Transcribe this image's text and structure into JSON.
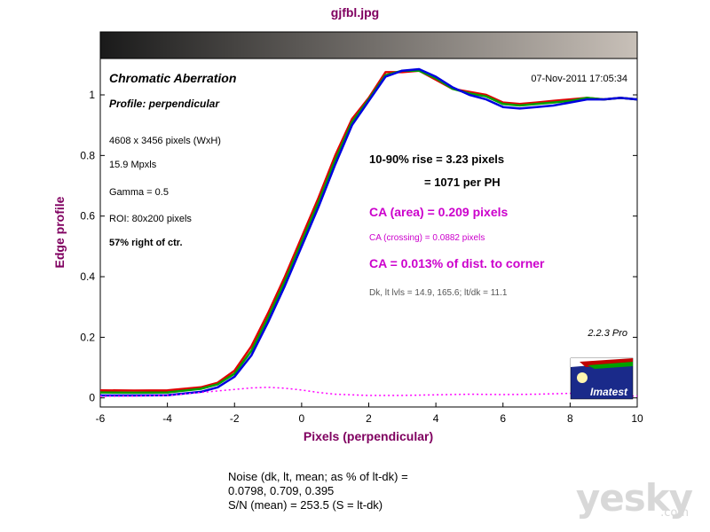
{
  "page": {
    "title": "gjfbl.jpg"
  },
  "panel": {
    "title": "Chromatic Aberration",
    "subtitle": "Profile: perpendicular",
    "timestamp": "07-Nov-2011 17:05:34",
    "image_info": [
      "4608 x 3456 pixels (WxH)",
      "15.9 Mpxls",
      "Gamma = 0.5",
      "ROI: 80x200 pixels"
    ],
    "position": "57% right of ctr.",
    "rise": "10-90% rise = 3.23 pixels",
    "per_ph": "= 1071 per PH",
    "ca_area": "CA (area) = 0.209 pixels",
    "ca_crossing": "CA (crossing) = 0.0882 pixels",
    "ca_corner": "CA = 0.013% of dist. to corner",
    "levels": "Dk, lt lvls = 14.9, 165.6;  lt/dk = 11.1",
    "version": "2.2.3  Pro",
    "logo_text": "Imatest"
  },
  "noise": {
    "line1": "Noise (dk, lt, mean; as % of lt-dk) =",
    "line2": "0.0798,  0.709,  0.395",
    "line3": "S/N (mean) = 253.5  (S = lt-dk)"
  },
  "watermark": {
    "main": "yesky",
    "sub": ".com"
  },
  "colors": {
    "title": "#800060",
    "magenta": "#cc00cc",
    "red": "#e00000",
    "green": "#00a000",
    "blue": "#0000e0",
    "text": "#000000"
  },
  "chart_data": {
    "type": "line",
    "xlabel": "Pixels (perpendicular)",
    "ylabel": "Edge profile",
    "xlim": [
      -6,
      10
    ],
    "ylim": [
      -0.03,
      1.12
    ],
    "xticks": [
      -6,
      -4,
      -2,
      0,
      2,
      4,
      6,
      8,
      10
    ],
    "yticks": [
      0,
      0.2,
      0.4,
      0.6,
      0.8,
      1
    ],
    "ytick_labels": [
      "0",
      "0.2",
      "0.4",
      "0.6",
      "0.8",
      "1"
    ],
    "grid": false,
    "series": [
      {
        "color": "#e00000",
        "x": [
          -6,
          -5,
          -4,
          -3,
          -2.5,
          -2,
          -1.5,
          -1,
          -0.5,
          0,
          0.5,
          1,
          1.5,
          2,
          2.5,
          3,
          3.5,
          4,
          4.5,
          5,
          5.5,
          6,
          6.5,
          7,
          7.5,
          8,
          8.5,
          9,
          9.5,
          10
        ],
        "y": [
          0.025,
          0.024,
          0.025,
          0.035,
          0.05,
          0.09,
          0.17,
          0.28,
          0.4,
          0.53,
          0.66,
          0.8,
          0.92,
          0.99,
          1.075,
          1.075,
          1.08,
          1.05,
          1.02,
          1.01,
          1.0,
          0.975,
          0.97,
          0.975,
          0.98,
          0.985,
          0.99,
          0.985,
          0.99,
          0.985
        ]
      },
      {
        "color": "#00a000",
        "x": [
          -6,
          -5,
          -4,
          -3,
          -2.5,
          -2,
          -1.5,
          -1,
          -0.5,
          0,
          0.5,
          1,
          1.5,
          2,
          2.5,
          3,
          3.5,
          4,
          4.5,
          5,
          5.5,
          6,
          6.5,
          7,
          7.5,
          8,
          8.5,
          9,
          9.5,
          10
        ],
        "y": [
          0.018,
          0.017,
          0.018,
          0.03,
          0.045,
          0.08,
          0.155,
          0.265,
          0.385,
          0.515,
          0.645,
          0.785,
          0.91,
          0.985,
          1.065,
          1.08,
          1.08,
          1.055,
          1.02,
          1.005,
          0.995,
          0.97,
          0.965,
          0.97,
          0.975,
          0.98,
          0.99,
          0.985,
          0.99,
          0.985
        ]
      },
      {
        "color": "#0000e0",
        "x": [
          -6,
          -5,
          -4,
          -3,
          -2.5,
          -2,
          -1.5,
          -1,
          -0.5,
          0,
          0.5,
          1,
          1.5,
          2,
          2.5,
          3,
          3.5,
          4,
          4.5,
          5,
          5.5,
          6,
          6.5,
          7,
          7.5,
          8,
          8.5,
          9,
          9.5,
          10
        ],
        "y": [
          0.008,
          0.008,
          0.009,
          0.02,
          0.035,
          0.07,
          0.14,
          0.25,
          0.37,
          0.5,
          0.63,
          0.77,
          0.9,
          0.98,
          1.06,
          1.08,
          1.085,
          1.06,
          1.025,
          1.0,
          0.985,
          0.96,
          0.955,
          0.96,
          0.965,
          0.975,
          0.985,
          0.985,
          0.99,
          0.985
        ]
      },
      {
        "color": "#ff00ff",
        "dashed": true,
        "x": [
          -6,
          -5,
          -4,
          -3,
          -2,
          -1.5,
          -1,
          -0.5,
          0,
          0.5,
          1,
          2,
          3,
          4,
          5,
          6,
          7,
          8,
          9,
          10
        ],
        "y": [
          0.005,
          0.006,
          0.008,
          0.018,
          0.028,
          0.033,
          0.035,
          0.032,
          0.026,
          0.018,
          0.012,
          0.008,
          0.008,
          0.01,
          0.012,
          0.011,
          0.012,
          0.015,
          0.008,
          0.006
        ]
      }
    ]
  }
}
